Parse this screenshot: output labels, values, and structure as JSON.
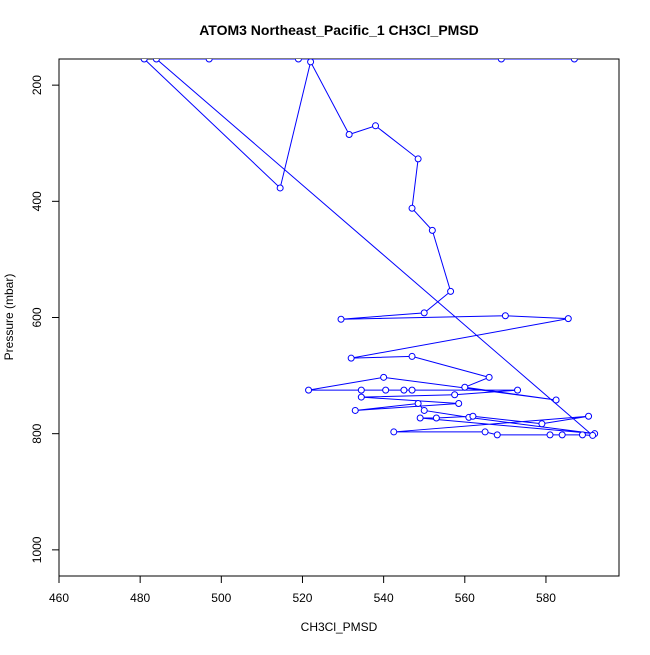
{
  "chart_data": {
    "type": "line",
    "title": "ATOM3 Northeast_Pacific_1 CH3Cl_PMSD",
    "xlabel": "CH3Cl_PMSD",
    "ylabel": "Pressure (mbar)",
    "xlim": [
      460,
      598
    ],
    "ylim": [
      1045,
      155
    ],
    "y_reversed": true,
    "x_ticks": [
      460,
      480,
      500,
      520,
      540,
      560,
      580
    ],
    "y_ticks": [
      200,
      400,
      600,
      800,
      1000
    ],
    "grid": false,
    "legend": "none",
    "series_color": "#0000ff",
    "marker": "open-circle",
    "x": [
      481,
      514.5,
      522,
      531.5,
      538,
      548.5,
      547,
      552,
      556.5,
      550,
      529.5,
      570,
      585.5,
      532,
      547,
      566,
      560,
      582.5,
      540,
      521.5,
      534.5,
      540.5,
      545,
      547,
      573,
      557.5,
      534.5,
      558.5,
      533,
      548.5,
      550,
      561,
      592,
      549,
      553,
      562,
      579,
      590.5,
      542.5,
      565,
      568,
      581,
      584,
      589,
      591.5,
      484,
      497,
      519,
      569,
      587
    ],
    "y": [
      155,
      377,
      160,
      285,
      270,
      327,
      412,
      450,
      555,
      592,
      603,
      597,
      602,
      670,
      667,
      703,
      720,
      742,
      703,
      725,
      725,
      725,
      725,
      725,
      725,
      733,
      737,
      748,
      760,
      748,
      760,
      772,
      800,
      773,
      773,
      770,
      783,
      770,
      797,
      797,
      802,
      802,
      802,
      802,
      803,
      155,
      155,
      155,
      155,
      155
    ]
  }
}
